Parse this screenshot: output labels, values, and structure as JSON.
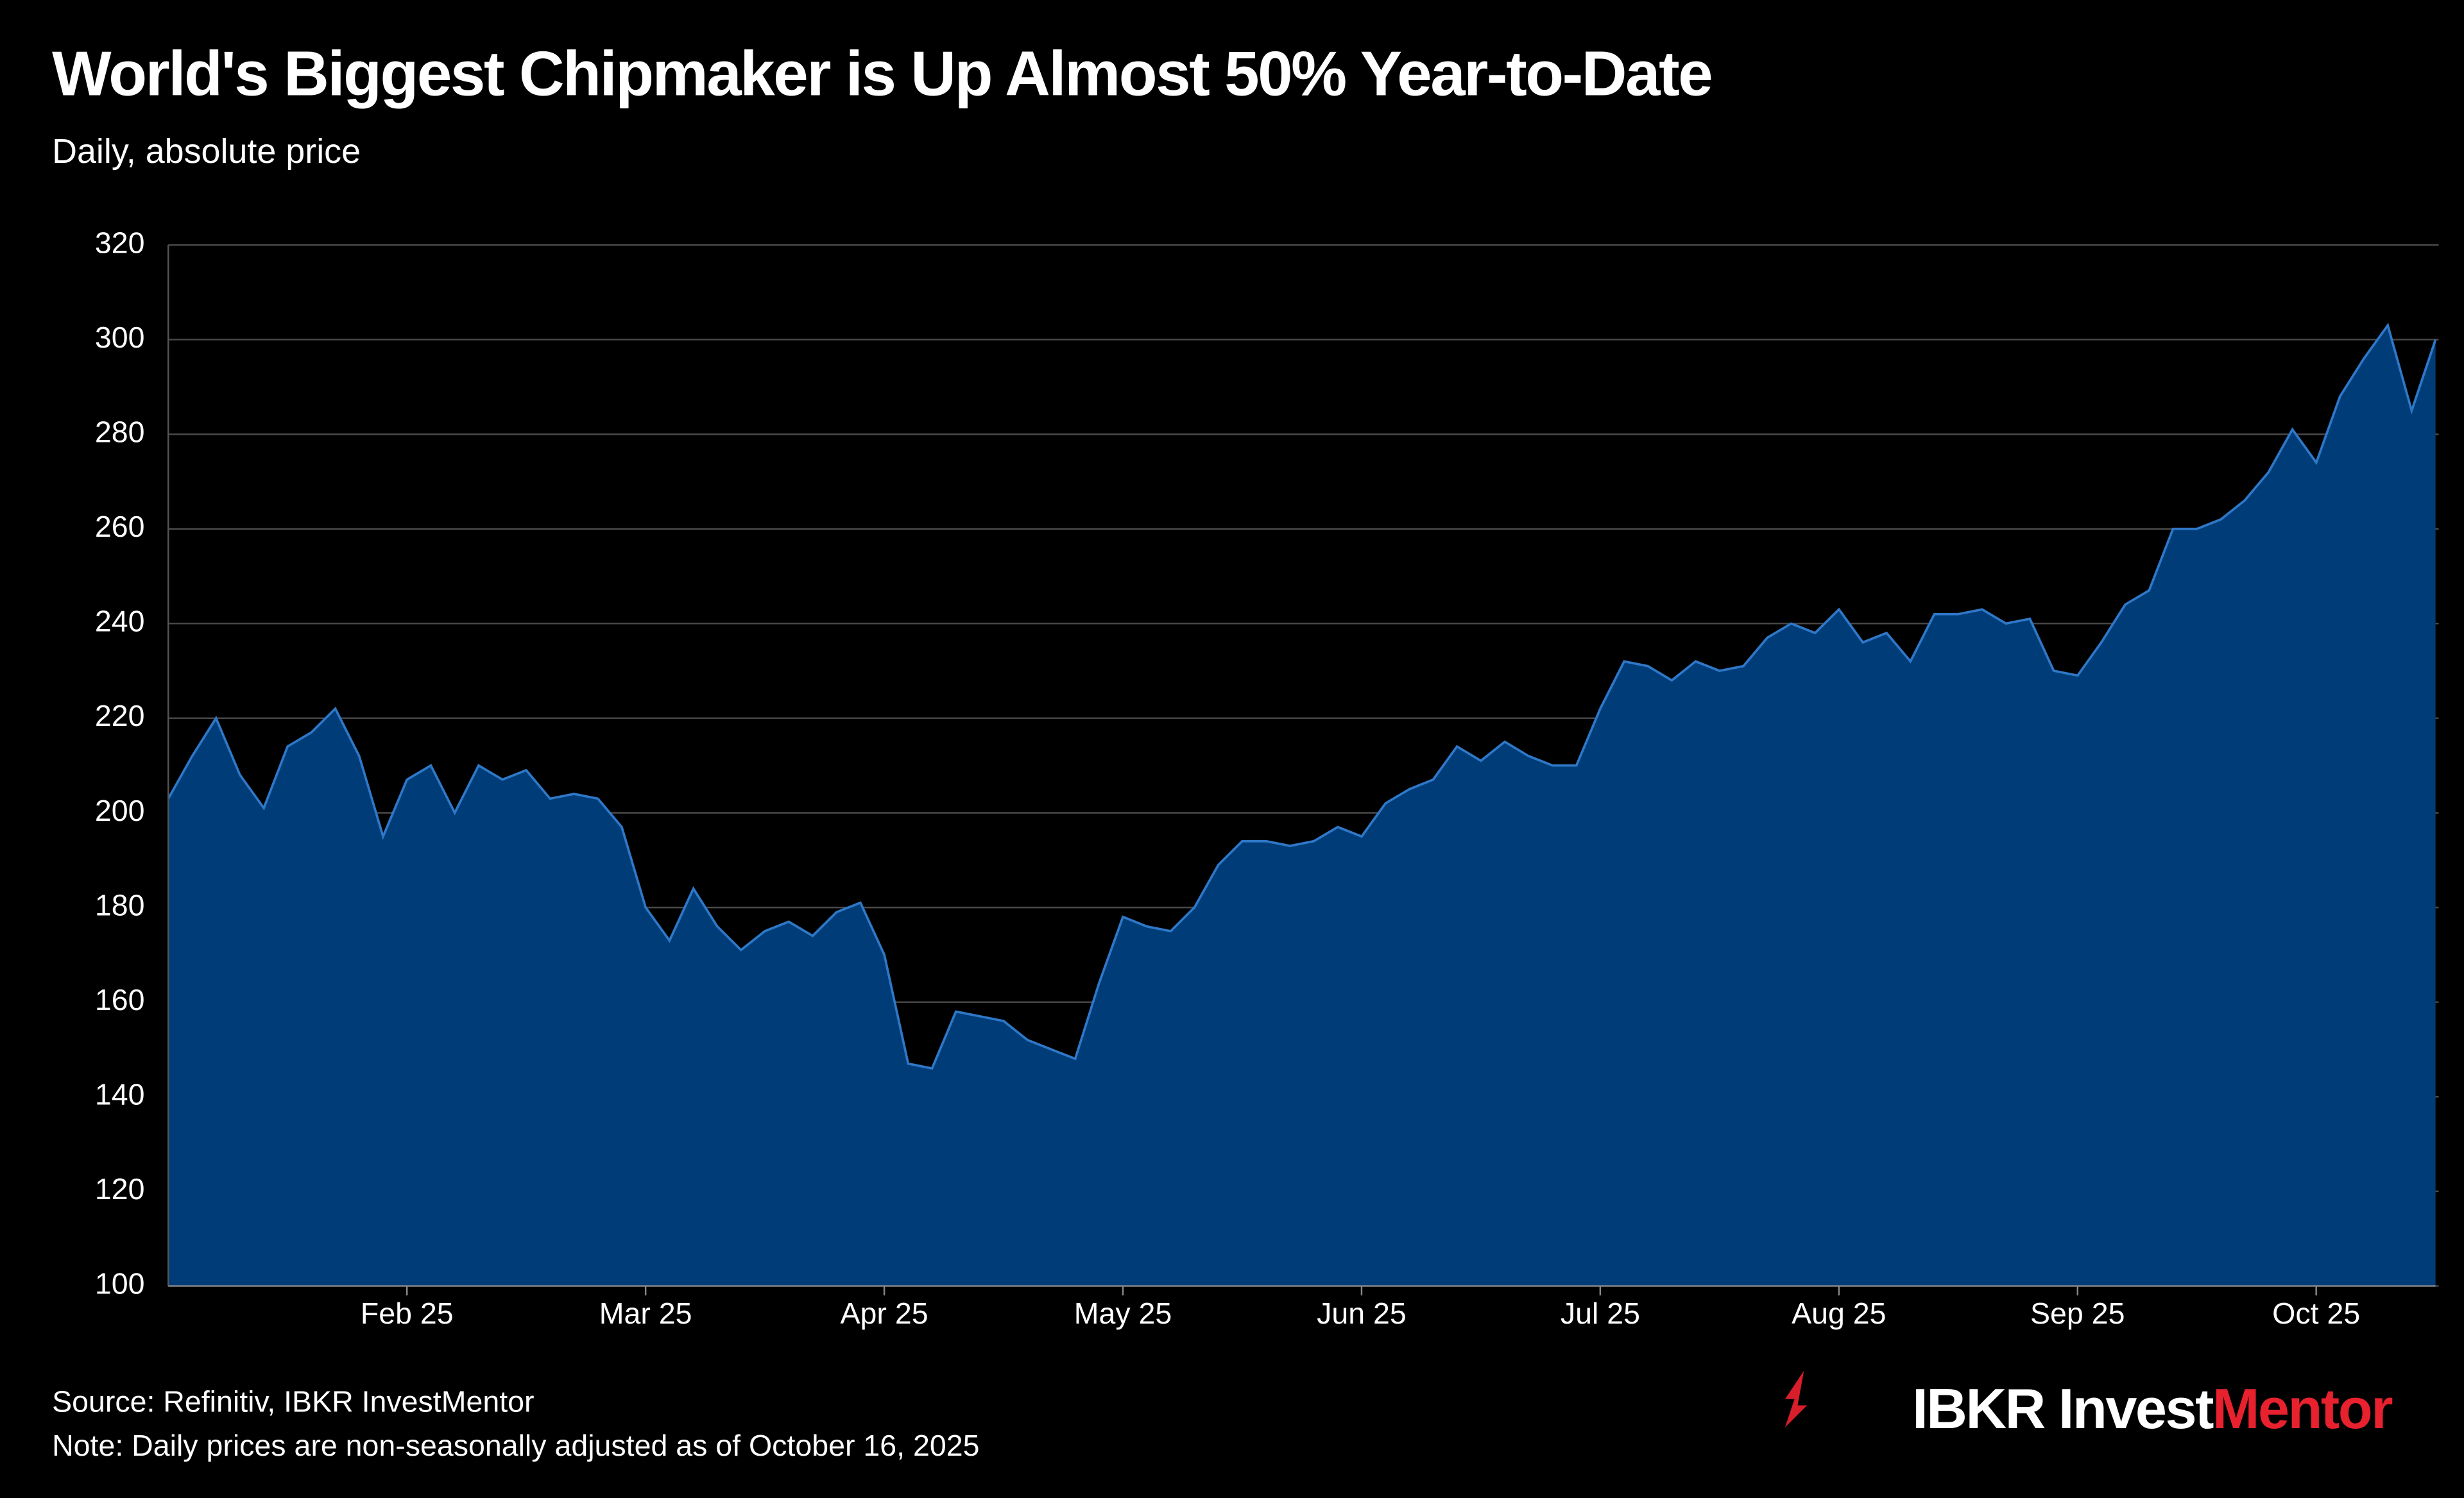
{
  "chart_data": {
    "type": "area",
    "title": "World's Biggest Chipmaker is Up Almost 50% Year-to-Date",
    "subtitle": "Daily, absolute price",
    "categories": [
      null,
      null,
      null,
      null,
      null,
      null,
      null,
      null,
      null,
      null,
      "Feb 25",
      null,
      null,
      null,
      null,
      null,
      null,
      null,
      null,
      null,
      "Mar 25",
      null,
      null,
      null,
      null,
      null,
      null,
      null,
      null,
      null,
      "Apr 25",
      null,
      null,
      null,
      null,
      null,
      null,
      null,
      null,
      null,
      "May 25",
      null,
      null,
      null,
      null,
      null,
      null,
      null,
      null,
      null,
      "Jun 25",
      null,
      null,
      null,
      null,
      null,
      null,
      null,
      null,
      null,
      "Jul 25",
      null,
      null,
      null,
      null,
      null,
      null,
      null,
      null,
      null,
      "Aug 25",
      null,
      null,
      null,
      null,
      null,
      null,
      null,
      null,
      null,
      "Sep 25",
      null,
      null,
      null,
      null,
      null,
      null,
      null,
      null,
      null,
      "Oct 25",
      null,
      null,
      null,
      null,
      null
    ],
    "values": [
      203,
      212,
      220,
      208,
      201,
      214,
      217,
      222,
      212,
      195,
      207,
      210,
      200,
      210,
      207,
      209,
      203,
      204,
      203,
      197,
      180,
      173,
      184,
      176,
      171,
      175,
      177,
      174,
      179,
      181,
      170,
      147,
      146,
      158,
      157,
      156,
      152,
      150,
      148,
      164,
      178,
      176,
      175,
      180,
      189,
      194,
      194,
      193,
      194,
      197,
      195,
      202,
      205,
      207,
      214,
      211,
      215,
      212,
      210,
      210,
      222,
      232,
      231,
      228,
      232,
      230,
      231,
      237,
      240,
      238,
      243,
      236,
      238,
      232,
      242,
      242,
      243,
      240,
      241,
      230,
      229,
      236,
      244,
      247,
      260,
      260,
      262,
      266,
      272,
      281,
      274,
      288,
      296,
      303,
      285,
      300
    ],
    "color": "#003d78",
    "line_color": "#2f78c8",
    "ylim": [
      100,
      320
    ],
    "yticks": [
      100,
      120,
      140,
      160,
      180,
      200,
      220,
      240,
      260,
      280,
      300,
      320
    ],
    "grid": true,
    "source": "Source: Refinitiv, IBKR InvestMentor",
    "note": "Note: Daily prices are non-seasonally adjusted as of October 16, 2025",
    "brand": [
      "IBKR Invest",
      "Mentor"
    ]
  }
}
